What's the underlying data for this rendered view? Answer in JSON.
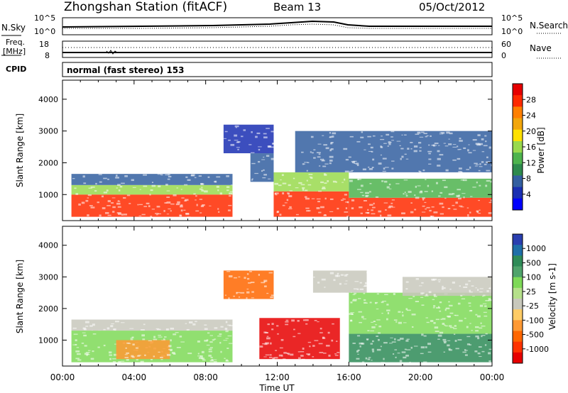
{
  "header": {
    "station": "Zhongshan Station (fitACF)",
    "beam": "Beam 13",
    "date": "05/Oct/2012"
  },
  "top_panels": {
    "nsky_label": "N.Sky",
    "nsky_ticks": [
      "10^5",
      "10^0"
    ],
    "nsearch_label": "N.Search",
    "nsearch_ticks": [
      "10^5",
      "10^0"
    ],
    "freq_label": "Freq.",
    "freq_unit": "[MHz]",
    "freq_ticks": [
      "18",
      "8"
    ],
    "nave_label": "Nave",
    "nave_ticks": [
      "60",
      "0"
    ],
    "cpid_label": "CPID",
    "cpid_value": "normal (fast stereo) 153"
  },
  "axes": {
    "ylabel": "Slant Range [km]",
    "xlabel": "Time UT",
    "y_ticks": [
      "4000",
      "3000",
      "2000",
      "1000"
    ],
    "x_ticks": [
      "00:00",
      "04:00",
      "08:00",
      "12:00",
      "16:00",
      "20:00",
      "00:00"
    ]
  },
  "power_colorbar": {
    "label": "Power [dB]",
    "ticks": [
      "28",
      "24",
      "20",
      "16",
      "12",
      "8",
      "4"
    ],
    "colors": [
      "#e60000",
      "#ff2a00",
      "#ff7f00",
      "#f2a60c",
      "#ffe100",
      "#99d94d",
      "#4db34d",
      "#2d8a4d",
      "#335fa0",
      "#1a2fb3",
      "#0000ff"
    ]
  },
  "velocity_colorbar": {
    "label": "Velocity [m s-1]",
    "ticks": [
      "1000",
      "500",
      "100",
      "25",
      "-25",
      "-100",
      "-500",
      "-1000"
    ],
    "colors": [
      "#2a3fb0",
      "#1f6fa8",
      "#2e8b57",
      "#4fa36b",
      "#7ed957",
      "#b5e08a",
      "#c8c8bc",
      "#ffcc66",
      "#ff9933",
      "#ff6600",
      "#ff3300",
      "#e60000"
    ]
  },
  "chart_data": {
    "type": "heatmap",
    "title": "Zhongshan Station (fitACF)",
    "xlabel": "Time UT",
    "ylabel": "Slant Range [km]",
    "x_range_hours": [
      0,
      24
    ],
    "y_range_km": [
      180,
      4600
    ],
    "panels": [
      {
        "name": "Power [dB]",
        "scale": [
          0,
          30
        ],
        "regions": [
          {
            "t": [
              0.5,
              9.5
            ],
            "r": [
              300,
              1000
            ],
            "value": 27
          },
          {
            "t": [
              0.5,
              9.5
            ],
            "r": [
              1000,
              1300
            ],
            "value": 14
          },
          {
            "t": [
              0.5,
              9.5
            ],
            "r": [
              1300,
              1650
            ],
            "value": 6
          },
          {
            "t": [
              9.0,
              11.8
            ],
            "r": [
              2300,
              3200
            ],
            "value": 5
          },
          {
            "t": [
              10.5,
              11.8
            ],
            "r": [
              1400,
              2300
            ],
            "value": 6
          },
          {
            "t": [
              11.8,
              16.0
            ],
            "r": [
              300,
              1100
            ],
            "value": 25
          },
          {
            "t": [
              11.8,
              16.0
            ],
            "r": [
              1100,
              1700
            ],
            "value": 14
          },
          {
            "t": [
              13.0,
              24.0
            ],
            "r": [
              1700,
              3000
            ],
            "value": 7
          },
          {
            "t": [
              16.0,
              24.0
            ],
            "r": [
              300,
              900
            ],
            "value": 25
          },
          {
            "t": [
              16.0,
              24.0
            ],
            "r": [
              900,
              1500
            ],
            "value": 12
          }
        ]
      },
      {
        "name": "Velocity [m s-1]",
        "scale": [
          -1000,
          1000
        ],
        "regions": [
          {
            "t": [
              0.5,
              9.5
            ],
            "r": [
              1300,
              1650
            ],
            "value": 0
          },
          {
            "t": [
              0.5,
              9.5
            ],
            "r": [
              300,
              1300
            ],
            "value": 80
          },
          {
            "t": [
              3.0,
              6.0
            ],
            "r": [
              400,
              1000
            ],
            "value": -90
          },
          {
            "t": [
              9.0,
              11.8
            ],
            "r": [
              2300,
              3200
            ],
            "value": -120
          },
          {
            "t": [
              11.0,
              15.5
            ],
            "r": [
              400,
              1700
            ],
            "value": -600
          },
          {
            "t": [
              14.0,
              17.0
            ],
            "r": [
              2500,
              3200
            ],
            "value": 0
          },
          {
            "t": [
              16.0,
              24.0
            ],
            "r": [
              300,
              1200
            ],
            "value": 300
          },
          {
            "t": [
              16.0,
              24.0
            ],
            "r": [
              1200,
              2500
            ],
            "value": 60
          },
          {
            "t": [
              19.0,
              24.0
            ],
            "r": [
              2400,
              3000
            ],
            "value": 0
          }
        ]
      }
    ]
  }
}
